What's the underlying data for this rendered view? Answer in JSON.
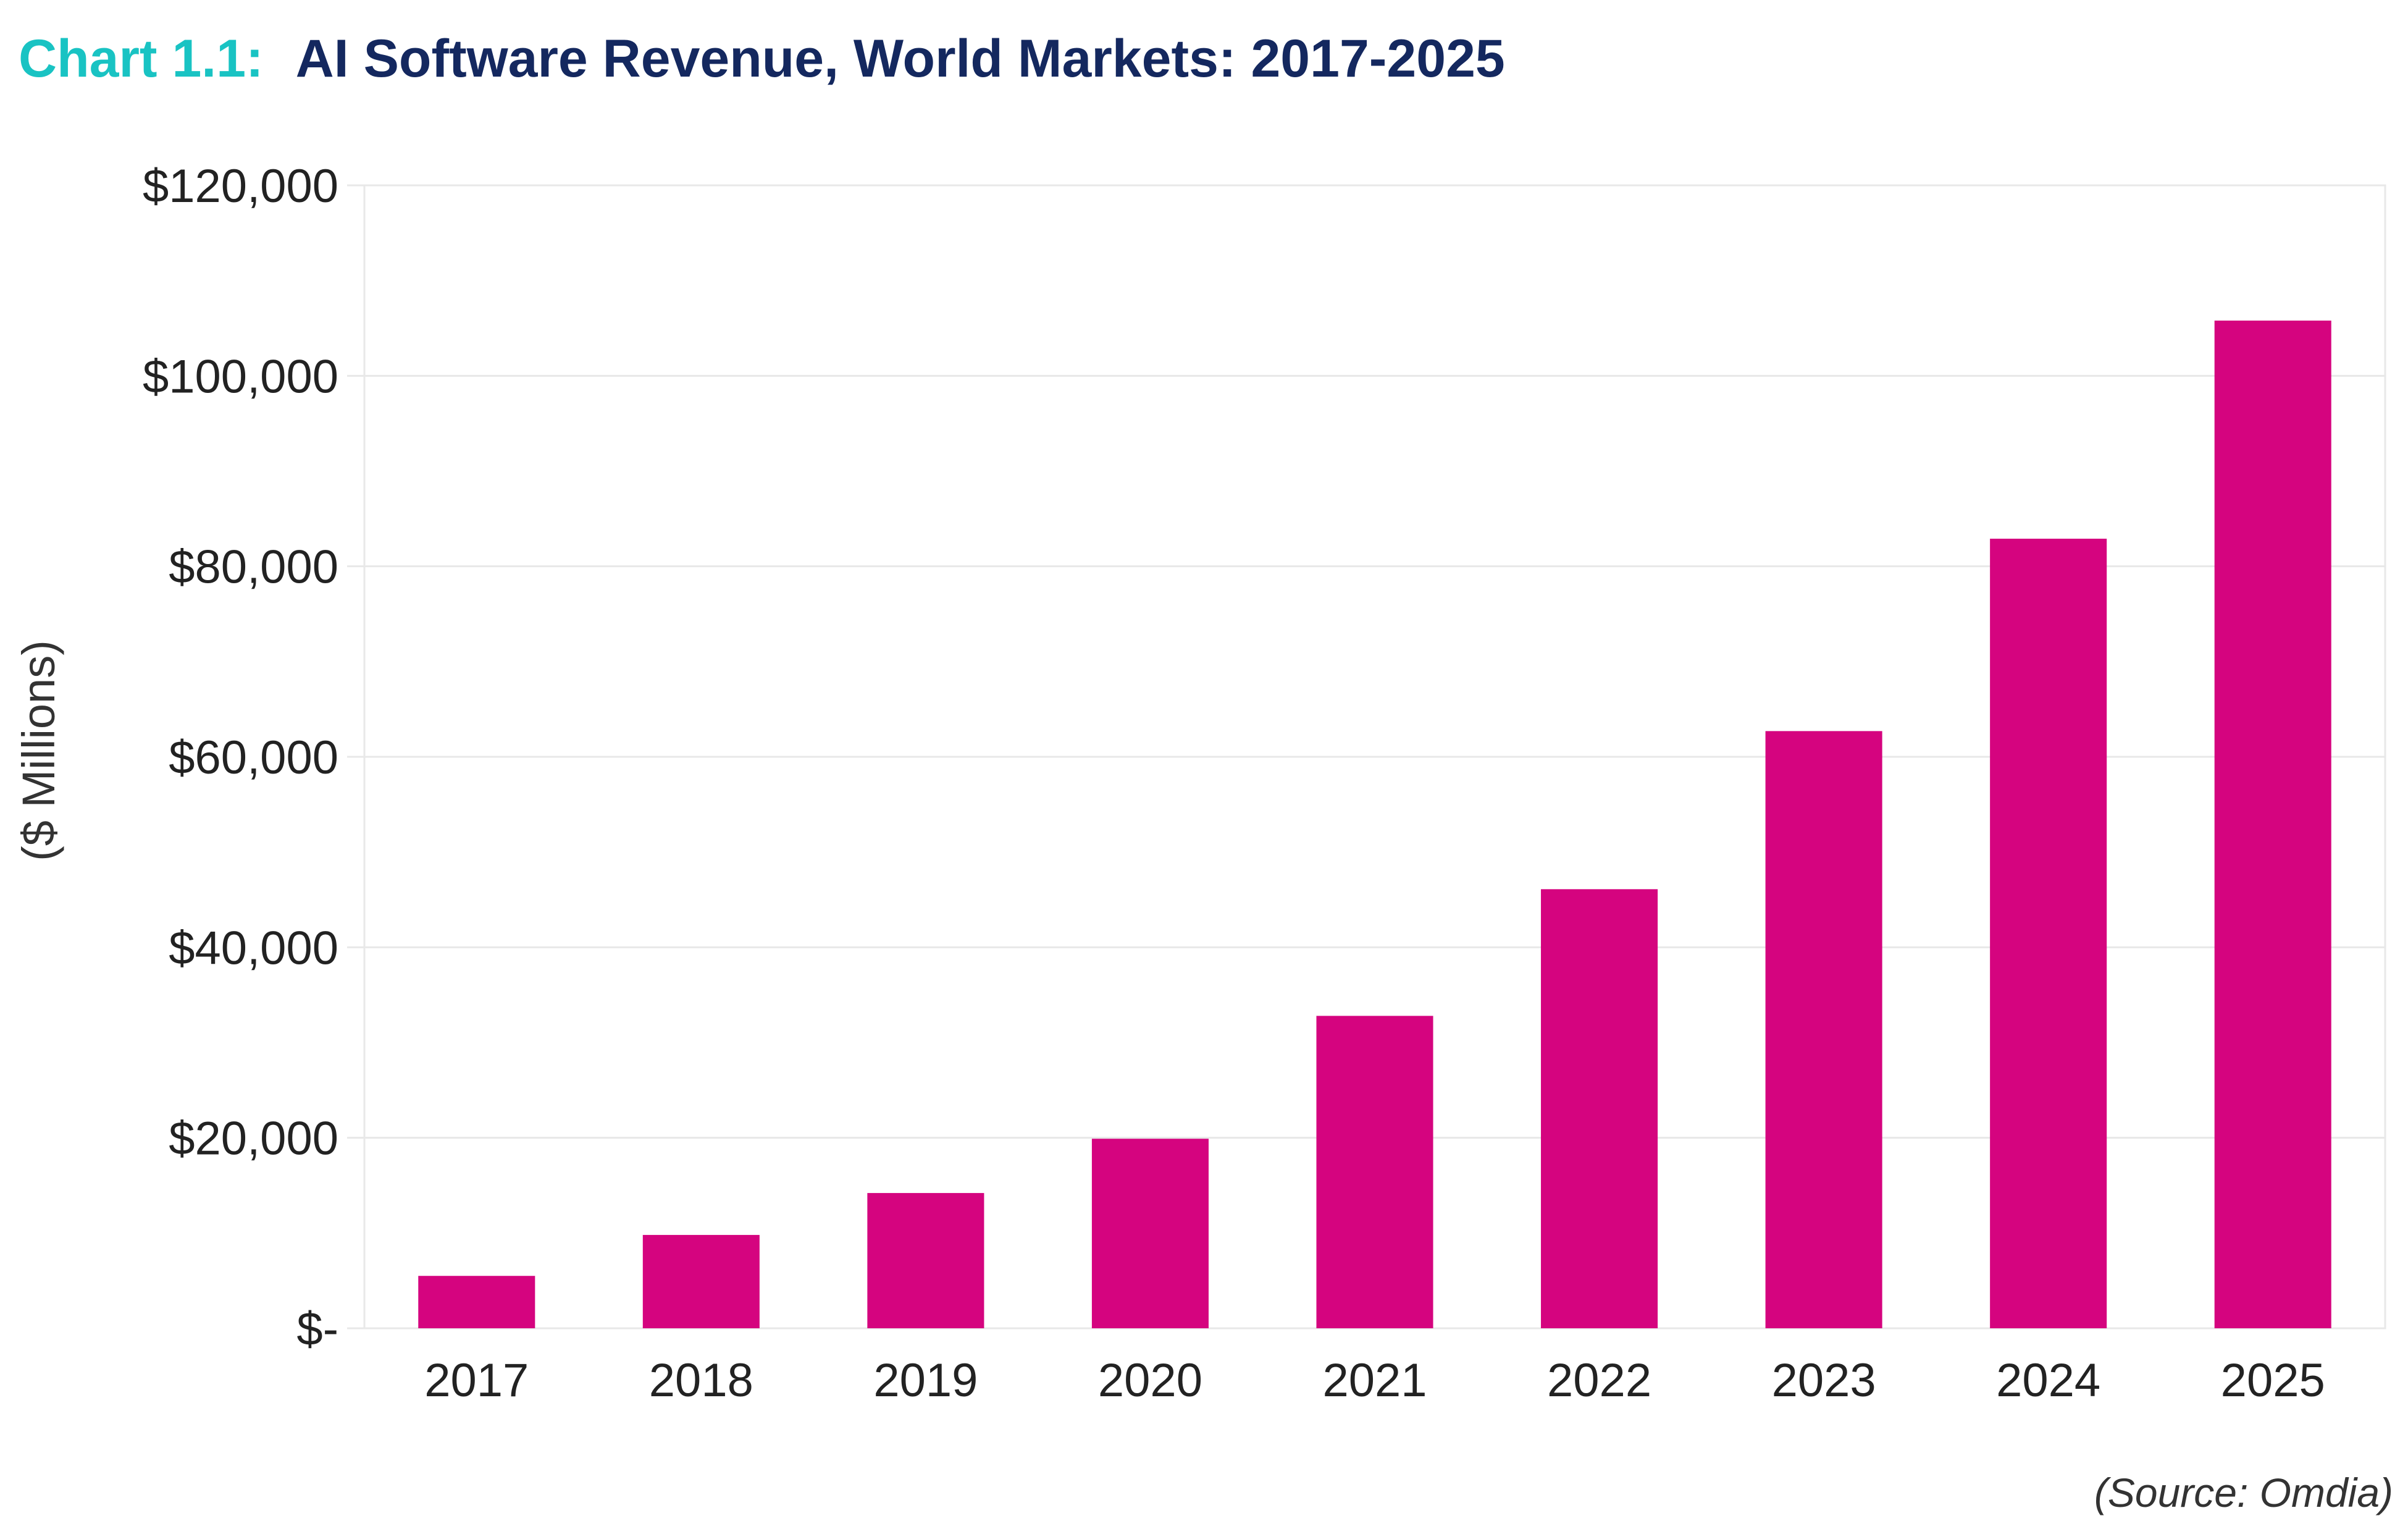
{
  "header": {
    "prefix": "Chart 1.1:",
    "title": "AI Software Revenue, World Markets: 2017-2025"
  },
  "footer": {
    "source": "(Source: Omdia)"
  },
  "colors": {
    "bar": "#d5047f",
    "title_prefix": "#19c3c3",
    "title_main": "#14285f",
    "gridline": "#e8e8e8"
  },
  "chart_data": {
    "type": "bar",
    "title": "AI Software Revenue, World Markets: 2017-2025",
    "xlabel": "",
    "ylabel": "($ Millions)",
    "categories": [
      "2017",
      "2018",
      "2019",
      "2020",
      "2021",
      "2022",
      "2023",
      "2024",
      "2025"
    ],
    "values": [
      5500,
      9800,
      14200,
      19900,
      32800,
      46100,
      62700,
      82900,
      105800
    ],
    "ylim": [
      0,
      120000
    ],
    "y_ticks": [
      0,
      20000,
      40000,
      60000,
      80000,
      100000,
      120000
    ],
    "y_tick_labels": [
      "$-",
      "$20,000",
      "$40,000",
      "$60,000",
      "$80,000",
      "$100,000",
      "$120,000"
    ],
    "grid": true,
    "legend": "none"
  }
}
